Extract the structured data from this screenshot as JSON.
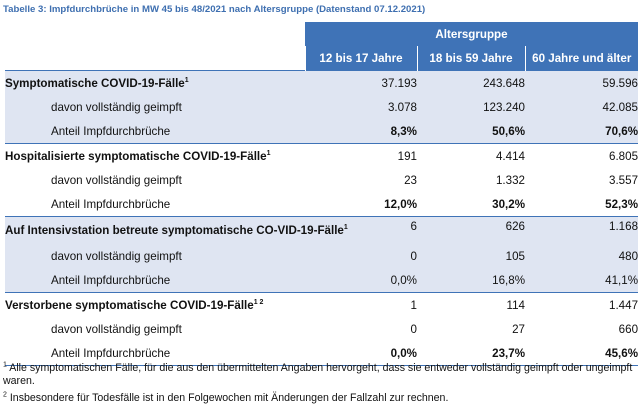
{
  "caption": "Tabelle 3: Impfdurchbrüche in MW 45 bis 48/2021 nach Altersgruppe (Datenstand 07.12.2021)",
  "header": {
    "group": "Altersgruppe",
    "columns": [
      "12 bis 17 Jahre",
      "18 bis 59 Jahre",
      "60 Jahre und älter"
    ]
  },
  "sections": [
    {
      "title": "Symptomatische COVID-19-Fälle",
      "sup": "1",
      "values": [
        "37.193",
        "243.648",
        "59.596"
      ],
      "vaccinated_label": "davon vollständig geimpft",
      "vaccinated": [
        "3.078",
        "123.240",
        "42.085"
      ],
      "share_label": "Anteil Impfdurchbrüche",
      "share": [
        "8,3%",
        "50,6%",
        "70,6%"
      ]
    },
    {
      "title": "Hospitalisierte symptomatische COVID-19-Fälle",
      "sup": "1",
      "values": [
        "191",
        "4.414",
        "6.805"
      ],
      "vaccinated_label": "davon vollständig geimpft",
      "vaccinated": [
        "23",
        "1.332",
        "3.557"
      ],
      "share_label": "Anteil Impfdurchbrüche",
      "share": [
        "12,0%",
        "30,2%",
        "52,3%"
      ]
    },
    {
      "title": "Auf Intensivstation betreute symptomatische CO-VID-19-Fälle",
      "sup": "1",
      "values": [
        "6",
        "626",
        "1.168"
      ],
      "vaccinated_label": "davon vollständig geimpft",
      "vaccinated": [
        "0",
        "105",
        "480"
      ],
      "share_label": "Anteil Impfdurchbrüche",
      "share": [
        "0,0%",
        "16,8%",
        "41,1%"
      ]
    },
    {
      "title": "Verstorbene symptomatische COVID-19-Fälle",
      "sup": "1 2",
      "values": [
        "1",
        "114",
        "1.447"
      ],
      "vaccinated_label": "davon vollständig geimpft",
      "vaccinated": [
        "0",
        "27",
        "660"
      ],
      "share_label": "Anteil Impfdurchbrüche",
      "share": [
        "0,0%",
        "23,7%",
        "45,6%"
      ]
    }
  ],
  "footnotes": [
    {
      "mark": "1",
      "text": "Alle symptomatischen Fälle, für die aus den übermittelten Angaben hervorgeht, dass sie entweder vollständig geimpft oder ungeimpft waren."
    },
    {
      "mark": "2",
      "text": "Insbesondere für Todesfälle ist in den Folgewochen mit Änderungen der Fallzahl zur rechnen."
    }
  ]
}
